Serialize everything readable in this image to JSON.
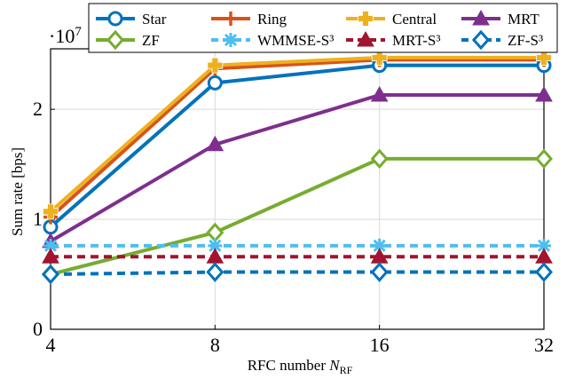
{
  "chart_data": {
    "type": "line",
    "xlabel": "RFC number",
    "xlabel_symbol": "N",
    "xlabel_subscript": "RF",
    "ylabel": "Sum rate [bps]",
    "y_multiplier": {
      "base": "·10",
      "exponent": "7"
    },
    "x": [
      4,
      8,
      16,
      32
    ],
    "x_scale": "log2",
    "x_ticks": [
      "4",
      "8",
      "16",
      "32"
    ],
    "y_ticks": [
      {
        "v": 0,
        "label": "0"
      },
      {
        "v": 1,
        "label": "1"
      },
      {
        "v": 2,
        "label": "2"
      }
    ],
    "ylim": [
      0,
      2.55
    ],
    "grid": true,
    "legend_position": "top (above plot)",
    "series": [
      {
        "name": "Star",
        "values": [
          0.93,
          2.24,
          2.4,
          2.4
        ],
        "color": "#0072BD",
        "marker": "circle",
        "dashed": false
      },
      {
        "name": "Ring",
        "values": [
          1.02,
          2.37,
          2.45,
          2.45
        ],
        "color": "#D95319",
        "marker": "plus",
        "dashed": false
      },
      {
        "name": "Central",
        "values": [
          1.07,
          2.4,
          2.47,
          2.47
        ],
        "color": "#EDB120",
        "marker": "cross-filled",
        "dashed": false
      },
      {
        "name": "MRT",
        "values": [
          0.8,
          1.68,
          2.13,
          2.13
        ],
        "color": "#7E2F8E",
        "marker": "triangle",
        "dashed": false
      },
      {
        "name": "ZF",
        "values": [
          0.5,
          0.88,
          1.55,
          1.55
        ],
        "color": "#77AC30",
        "marker": "diamond",
        "dashed": false
      },
      {
        "name": "WMMSE-S³",
        "values": [
          0.76,
          0.76,
          0.76,
          0.76
        ],
        "color": "#4DBEEE",
        "marker": "asterisk",
        "dashed": true
      },
      {
        "name": "MRT-S³",
        "values": [
          0.66,
          0.66,
          0.66,
          0.66
        ],
        "color": "#A2142F",
        "marker": "triangle",
        "dashed": true
      },
      {
        "name": "ZF-S³",
        "values": [
          0.5,
          0.52,
          0.52,
          0.52
        ],
        "color": "#0072BD",
        "marker": "diamond",
        "dashed": true
      }
    ]
  }
}
